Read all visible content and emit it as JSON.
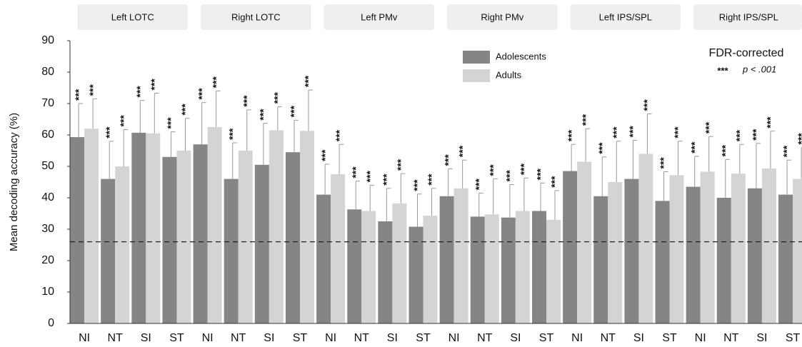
{
  "chart_data": {
    "type": "bar",
    "y_label": "Mean decoding accuracy (%)",
    "panels": [
      "Left LOTC",
      "Right LOTC",
      "Left PMv",
      "Right PMv",
      "Left IPS/SPL",
      "Right IPS/SPL"
    ],
    "categories": [
      "NI",
      "NT",
      "SI",
      "ST",
      "NI",
      "NT",
      "SI",
      "ST",
      "NI",
      "NT",
      "SI",
      "ST",
      "NI",
      "NT",
      "SI",
      "ST",
      "NI",
      "NT",
      "SI",
      "ST",
      "NI",
      "NT",
      "SI",
      "ST"
    ],
    "series": [
      {
        "name": "Adolescents",
        "color": "#858585",
        "values": [
          59.3,
          46,
          60.7,
          53,
          57,
          46,
          50.5,
          54.5,
          41,
          36.3,
          32.5,
          30.8,
          40.5,
          34,
          33.7,
          35.8,
          48.5,
          40.5,
          46,
          39,
          43.5,
          40,
          43,
          41
        ],
        "errors": [
          10.7,
          12,
          10.3,
          8,
          13.3,
          11.5,
          13.2,
          10.2,
          9.7,
          9,
          10.5,
          10.4,
          8.7,
          7.5,
          10.5,
          8.9,
          8.5,
          12.5,
          12.3,
          9.3,
          9.7,
          12.2,
          14.3,
          11
        ],
        "sig_labels": [
          "***",
          "***",
          "***",
          "***",
          "***",
          "***",
          "***",
          "***",
          "***",
          "***",
          "***",
          "***",
          "***",
          "***",
          "***",
          "***",
          "***",
          "***",
          "***",
          "***",
          "***",
          "***",
          "***",
          "***"
        ]
      },
      {
        "name": "Adults",
        "color": "#d4d4d4",
        "values": [
          62,
          50,
          60.5,
          55,
          62.5,
          55,
          61.5,
          61.3,
          47.5,
          35.8,
          38.2,
          34.3,
          43,
          34.7,
          35.8,
          33,
          51.5,
          45,
          54,
          47.2,
          48.3,
          47.7,
          49.3,
          46
        ],
        "errors": [
          9.5,
          11.7,
          12.8,
          10.3,
          11.5,
          13,
          7.5,
          13,
          9.5,
          8.2,
          9.5,
          8.7,
          9,
          11.3,
          10.5,
          9.3,
          10.5,
          13,
          12.7,
          10.8,
          11.2,
          9.3,
          11.9,
          10
        ],
        "sig_labels": [
          "***",
          "***",
          "***",
          "***",
          "***",
          "***",
          "***",
          "***",
          "***",
          "***",
          "***",
          "***",
          "***",
          "***",
          "***",
          "***",
          "***",
          "***",
          "***",
          "***",
          "***",
          "***",
          "***",
          "***"
        ]
      }
    ],
    "reference_line": 26,
    "significance_title": "FDR-corrected",
    "significance_key": "***",
    "significance_text": "p < .001",
    "ylim": [
      0,
      90
    ],
    "yticks": [
      0,
      10,
      20,
      30,
      40,
      50,
      60,
      70,
      80,
      90
    ]
  }
}
